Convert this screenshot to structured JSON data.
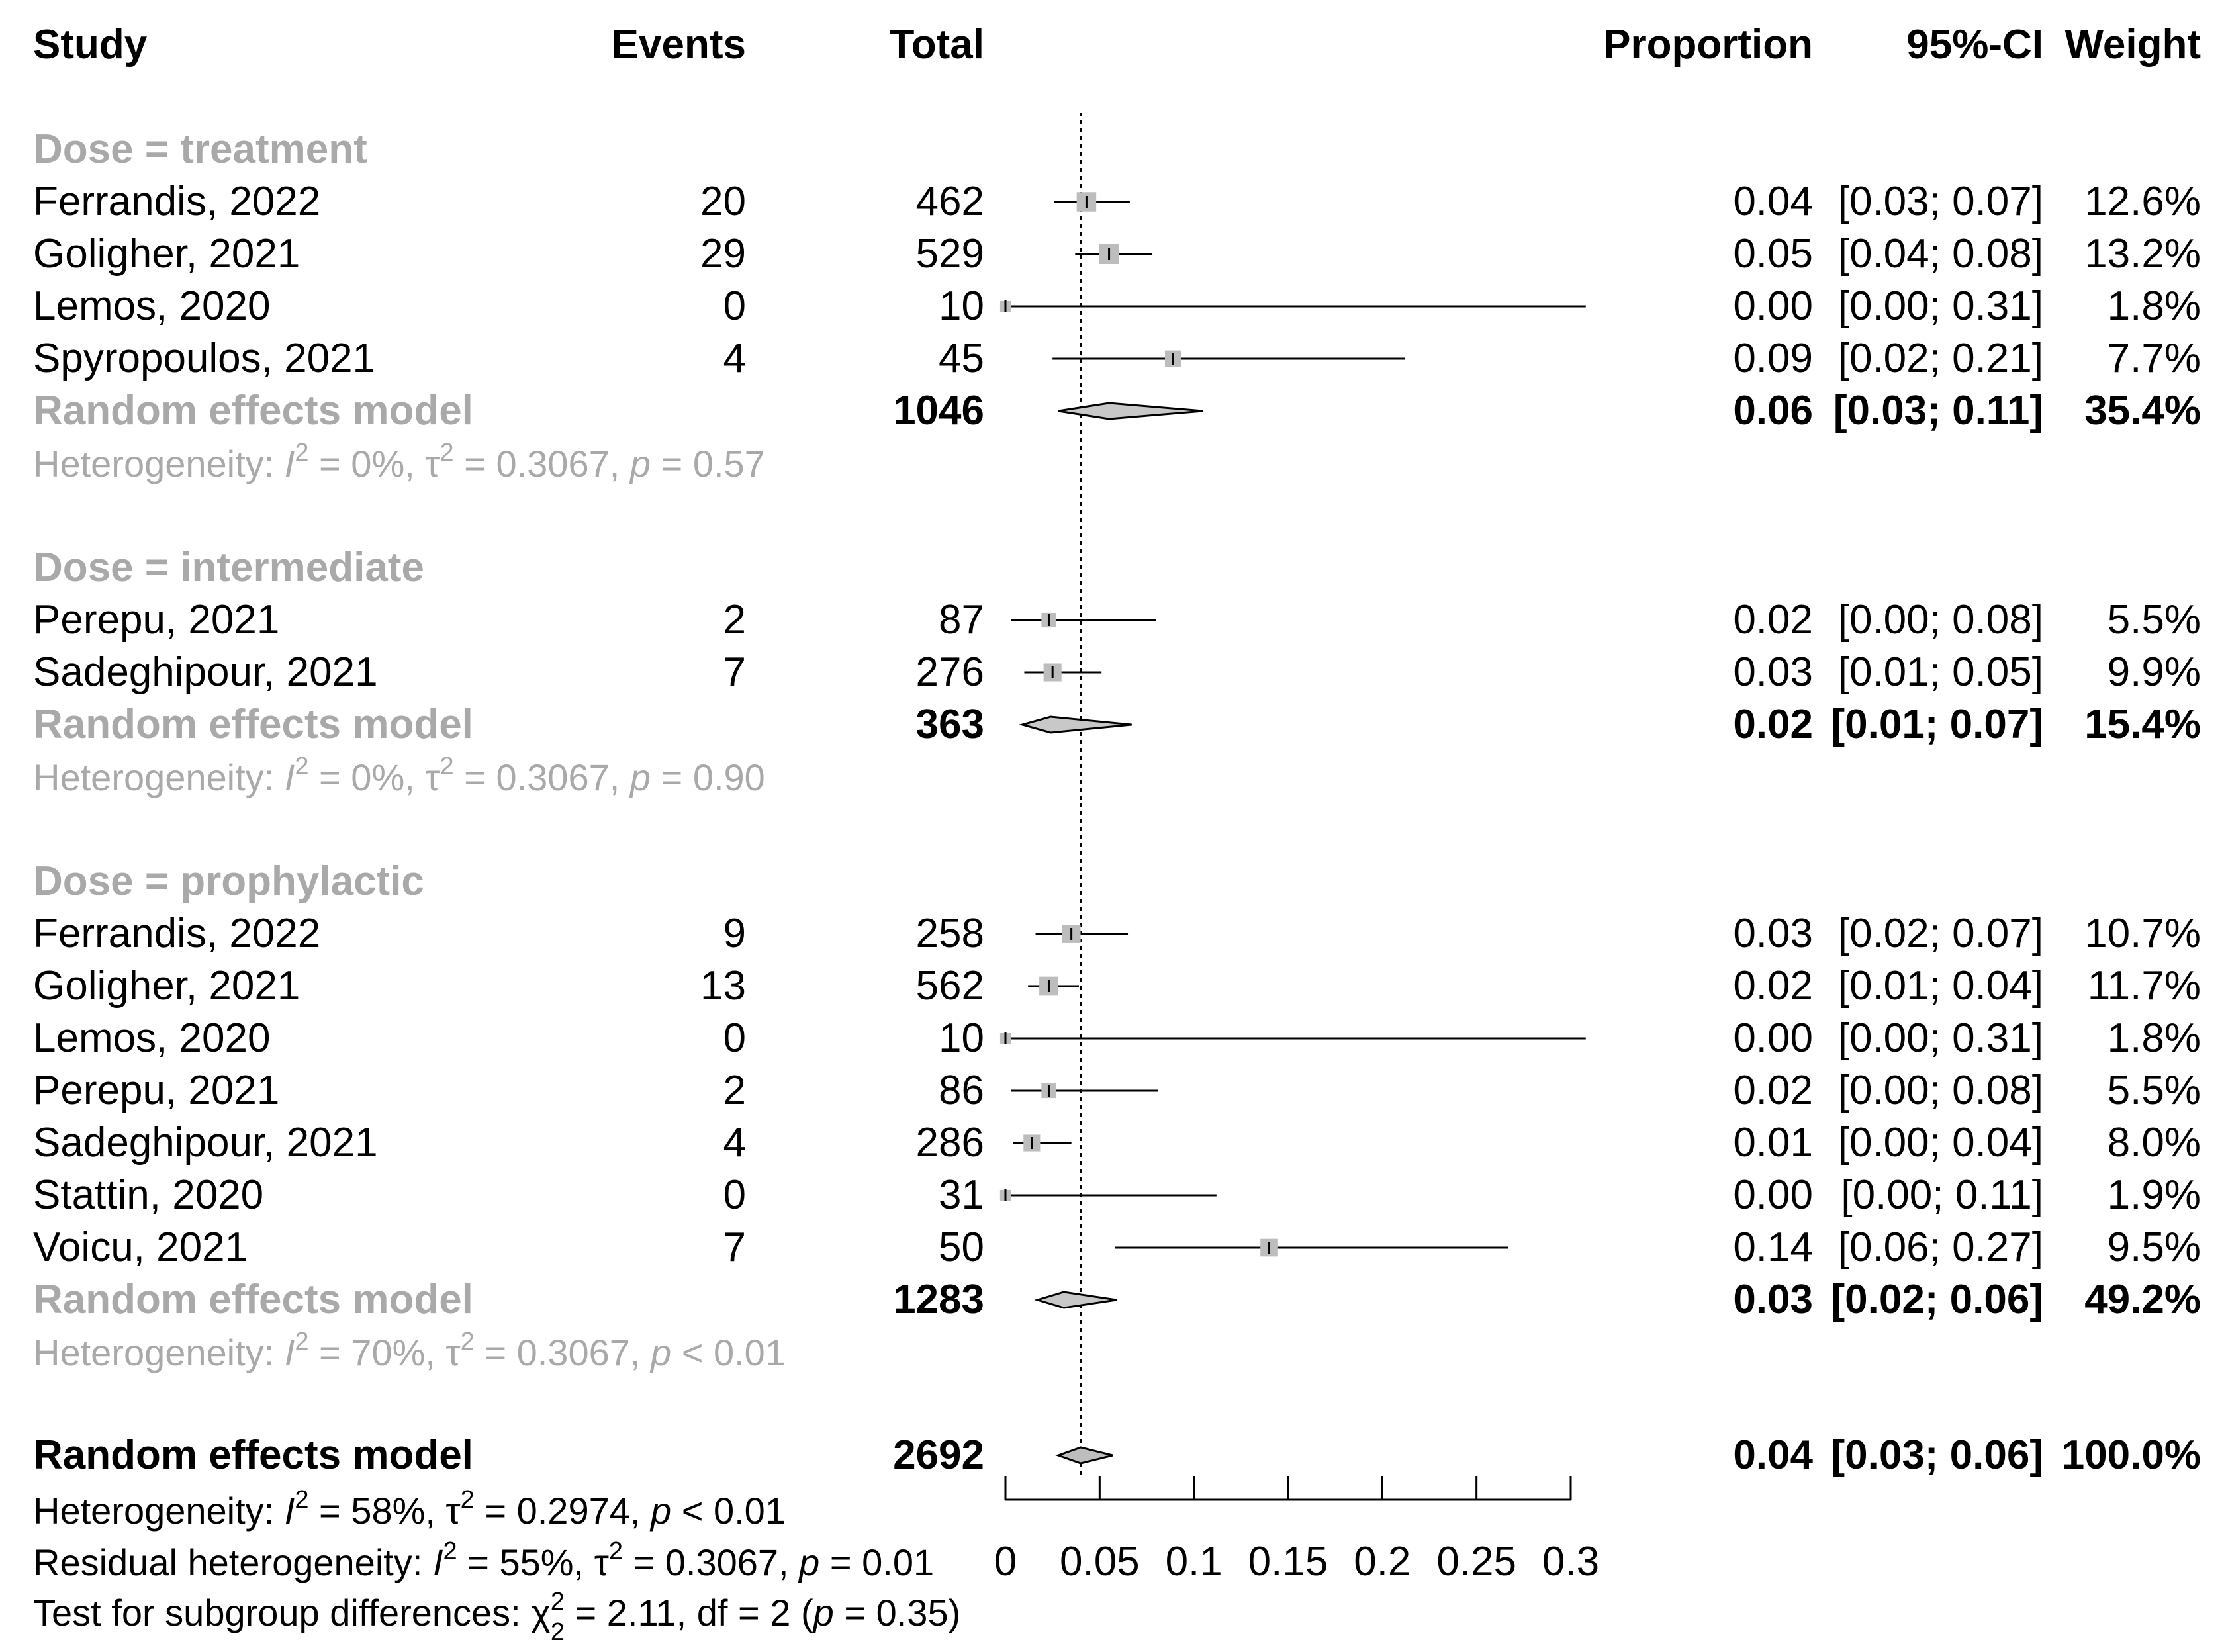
{
  "chart_data": {
    "type": "forest",
    "columns": {
      "study": "Study",
      "events": "Events",
      "total": "Total",
      "proportion": "Proportion",
      "ci": "95%-CI",
      "weight": "Weight"
    },
    "xlim": [
      0,
      0.3
    ],
    "reference_line": 0.04,
    "xticks": [
      0,
      0.05,
      0.1,
      0.15,
      0.2,
      0.25,
      0.3
    ],
    "xtick_labels": [
      "0",
      "0.05",
      "0.1",
      "0.15",
      "0.2",
      "0.25",
      "0.3"
    ],
    "groups": [
      {
        "label": "Dose = treatment",
        "studies": [
          {
            "study": "Ferrandis, 2022",
            "events": "20",
            "total": "462",
            "prop_label": "0.04",
            "ci_label": "[0.03; 0.07]",
            "weight_label": "12.6%",
            "est": 0.043,
            "lo": 0.026,
            "hi": 0.066,
            "w": 12.6
          },
          {
            "study": "Goligher, 2021",
            "events": "29",
            "total": "529",
            "prop_label": "0.05",
            "ci_label": "[0.04; 0.08]",
            "weight_label": "13.2%",
            "est": 0.055,
            "lo": 0.037,
            "hi": 0.078,
            "w": 13.2
          },
          {
            "study": "Lemos, 2020",
            "events": "0",
            "total": "10",
            "prop_label": "0.00",
            "ci_label": "[0.00; 0.31]",
            "weight_label": "1.8%",
            "est": 0.0,
            "lo": 0.0,
            "hi": 0.308,
            "w": 1.8
          },
          {
            "study": "Spyropoulos, 2021",
            "events": "4",
            "total": "45",
            "prop_label": "0.09",
            "ci_label": "[0.02; 0.21]",
            "weight_label": "7.7%",
            "est": 0.089,
            "lo": 0.025,
            "hi": 0.212,
            "w": 7.7
          }
        ],
        "model": {
          "label": "Random effects model",
          "total": "1046",
          "prop_label": "0.06",
          "ci_label": "[0.03; 0.11]",
          "weight_label": "35.4%",
          "est": 0.055,
          "lo": 0.028,
          "hi": 0.105
        },
        "het": {
          "prefix": "Heterogeneity: ",
          "i2_sym": "I",
          "i2_val": " = 0%, ",
          "tau_sym": "τ",
          "tau_val": " = 0.3067, ",
          "p_sym": "p",
          "p_val": " = 0.57"
        }
      },
      {
        "label": "Dose = intermediate",
        "studies": [
          {
            "study": "Perepu, 2021",
            "events": "2",
            "total": "87",
            "prop_label": "0.02",
            "ci_label": "[0.00; 0.08]",
            "weight_label": "5.5%",
            "est": 0.023,
            "lo": 0.003,
            "hi": 0.08,
            "w": 5.5
          },
          {
            "study": "Sadeghipour, 2021",
            "events": "7",
            "total": "276",
            "prop_label": "0.03",
            "ci_label": "[0.01; 0.05]",
            "weight_label": "9.9%",
            "est": 0.025,
            "lo": 0.01,
            "hi": 0.051,
            "w": 9.9
          }
        ],
        "model": {
          "label": "Random effects model",
          "total": "363",
          "prop_label": "0.02",
          "ci_label": "[0.01; 0.07]",
          "weight_label": "15.4%",
          "est": 0.024,
          "lo": 0.009,
          "hi": 0.067
        },
        "het": {
          "prefix": "Heterogeneity: ",
          "i2_sym": "I",
          "i2_val": " = 0%, ",
          "tau_sym": "τ",
          "tau_val": " = 0.3067, ",
          "p_sym": "p",
          "p_val": " = 0.90"
        }
      },
      {
        "label": "Dose = prophylactic",
        "studies": [
          {
            "study": "Ferrandis, 2022",
            "events": "9",
            "total": "258",
            "prop_label": "0.03",
            "ci_label": "[0.02; 0.07]",
            "weight_label": "10.7%",
            "est": 0.035,
            "lo": 0.016,
            "hi": 0.065,
            "w": 10.7
          },
          {
            "study": "Goligher, 2021",
            "events": "13",
            "total": "562",
            "prop_label": "0.02",
            "ci_label": "[0.01; 0.04]",
            "weight_label": "11.7%",
            "est": 0.023,
            "lo": 0.012,
            "hi": 0.039,
            "w": 11.7
          },
          {
            "study": "Lemos, 2020",
            "events": "0",
            "total": "10",
            "prop_label": "0.00",
            "ci_label": "[0.00; 0.31]",
            "weight_label": "1.8%",
            "est": 0.0,
            "lo": 0.0,
            "hi": 0.308,
            "w": 1.8
          },
          {
            "study": "Perepu, 2021",
            "events": "2",
            "total": "86",
            "prop_label": "0.02",
            "ci_label": "[0.00; 0.08]",
            "weight_label": "5.5%",
            "est": 0.023,
            "lo": 0.003,
            "hi": 0.081,
            "w": 5.5
          },
          {
            "study": "Sadeghipour, 2021",
            "events": "4",
            "total": "286",
            "prop_label": "0.01",
            "ci_label": "[0.00; 0.04]",
            "weight_label": "8.0%",
            "est": 0.014,
            "lo": 0.004,
            "hi": 0.035,
            "w": 8.0
          },
          {
            "study": "Stattin, 2020",
            "events": "0",
            "total": "31",
            "prop_label": "0.00",
            "ci_label": "[0.00; 0.11]",
            "weight_label": "1.9%",
            "est": 0.0,
            "lo": 0.0,
            "hi": 0.112,
            "w": 1.9
          },
          {
            "study": "Voicu, 2021",
            "events": "7",
            "total": "50",
            "prop_label": "0.14",
            "ci_label": "[0.06; 0.27]",
            "weight_label": "9.5%",
            "est": 0.14,
            "lo": 0.058,
            "hi": 0.267,
            "w": 9.5
          }
        ],
        "model": {
          "label": "Random effects model",
          "total": "1283",
          "prop_label": "0.03",
          "ci_label": "[0.02; 0.06]",
          "weight_label": "49.2%",
          "est": 0.031,
          "lo": 0.017,
          "hi": 0.059
        },
        "het": {
          "prefix": "Heterogeneity: ",
          "i2_sym": "I",
          "i2_val": " = 70%, ",
          "tau_sym": "τ",
          "tau_val": " = 0.3067, ",
          "p_sym": "p",
          "p_val": " < 0.01"
        }
      }
    ],
    "overall": {
      "label": "Random effects model",
      "total": "2692",
      "prop_label": "0.04",
      "ci_label": "[0.03; 0.06]",
      "weight_label": "100.0%",
      "est": 0.04,
      "lo": 0.028,
      "hi": 0.057
    },
    "footer": {
      "het": {
        "prefix": "Heterogeneity: ",
        "i2_sym": "I",
        "i2_val": " = 58%, ",
        "tau_sym": "τ",
        "tau_val": " = 0.2974, ",
        "p_sym": "p",
        "p_val": " < 0.01"
      },
      "resid": {
        "prefix": "Residual heterogeneity: ",
        "i2_sym": "I",
        "i2_val": " = 55%, ",
        "tau_sym": "τ",
        "tau_val": " = 0.3067, ",
        "p_sym": "p",
        "p_val": " = 0.01"
      },
      "subgroup": {
        "prefix": "Test for subgroup differences: ",
        "chi_sym": "χ",
        "chi_val": " = 2.11, df = 2 (",
        "p_sym": "p",
        "p_val": " = 0.35)"
      }
    },
    "colors": {
      "square": "#bdbdbd",
      "diamond_group": "#c8c8c8",
      "diamond_overall": "#bebebe",
      "subgroup_text": "#a9a9a9",
      "line": "#000000"
    }
  }
}
